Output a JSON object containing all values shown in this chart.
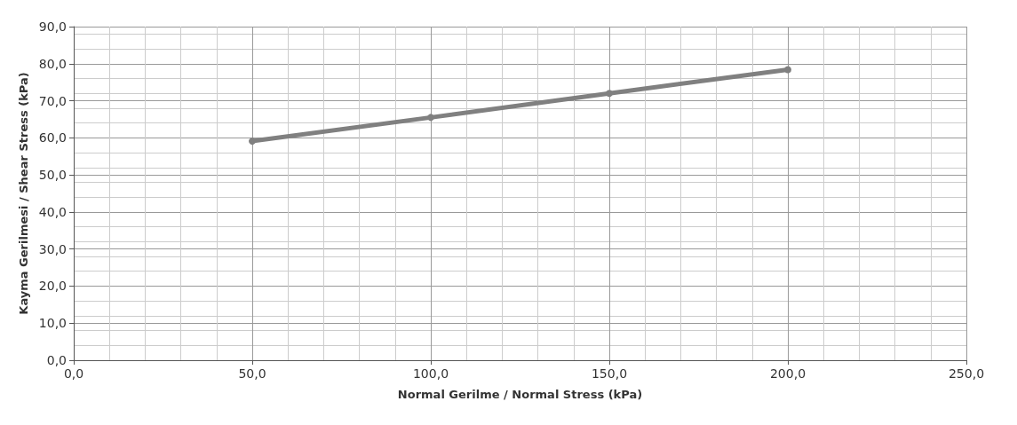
{
  "chart_data": {
    "type": "line",
    "xlabel": "Normal Gerilme / Normal Stress (kPa)",
    "ylabel": "Kayma Gerilmesi / Shear Stress (kPa)",
    "x": [
      50,
      100,
      150,
      200
    ],
    "series": [
      {
        "color": "#808080",
        "values": [
          59.1,
          65.5,
          72.0,
          78.4
        ]
      }
    ],
    "xlim": [
      0,
      250
    ],
    "ylim": [
      0,
      90
    ],
    "xticks": [
      {
        "value": 0,
        "label": "0,0"
      },
      {
        "value": 50,
        "label": "50,0"
      },
      {
        "value": 100,
        "label": "100,0"
      },
      {
        "value": 150,
        "label": "150,0"
      },
      {
        "value": 200,
        "label": "200,0"
      },
      {
        "value": 250,
        "label": "250,0"
      }
    ],
    "yticks": [
      {
        "value": 0,
        "label": "0,0"
      },
      {
        "value": 10,
        "label": "10,0"
      },
      {
        "value": 20,
        "label": "20,0"
      },
      {
        "value": 30,
        "label": "30,0"
      },
      {
        "value": 40,
        "label": "40,0"
      },
      {
        "value": 50,
        "label": "50,0"
      },
      {
        "value": 60,
        "label": "60,0"
      },
      {
        "value": 70,
        "label": "70,0"
      },
      {
        "value": 80,
        "label": "80,0"
      },
      {
        "value": 90,
        "label": "90,0"
      }
    ],
    "grid": true,
    "marker": "circle"
  }
}
